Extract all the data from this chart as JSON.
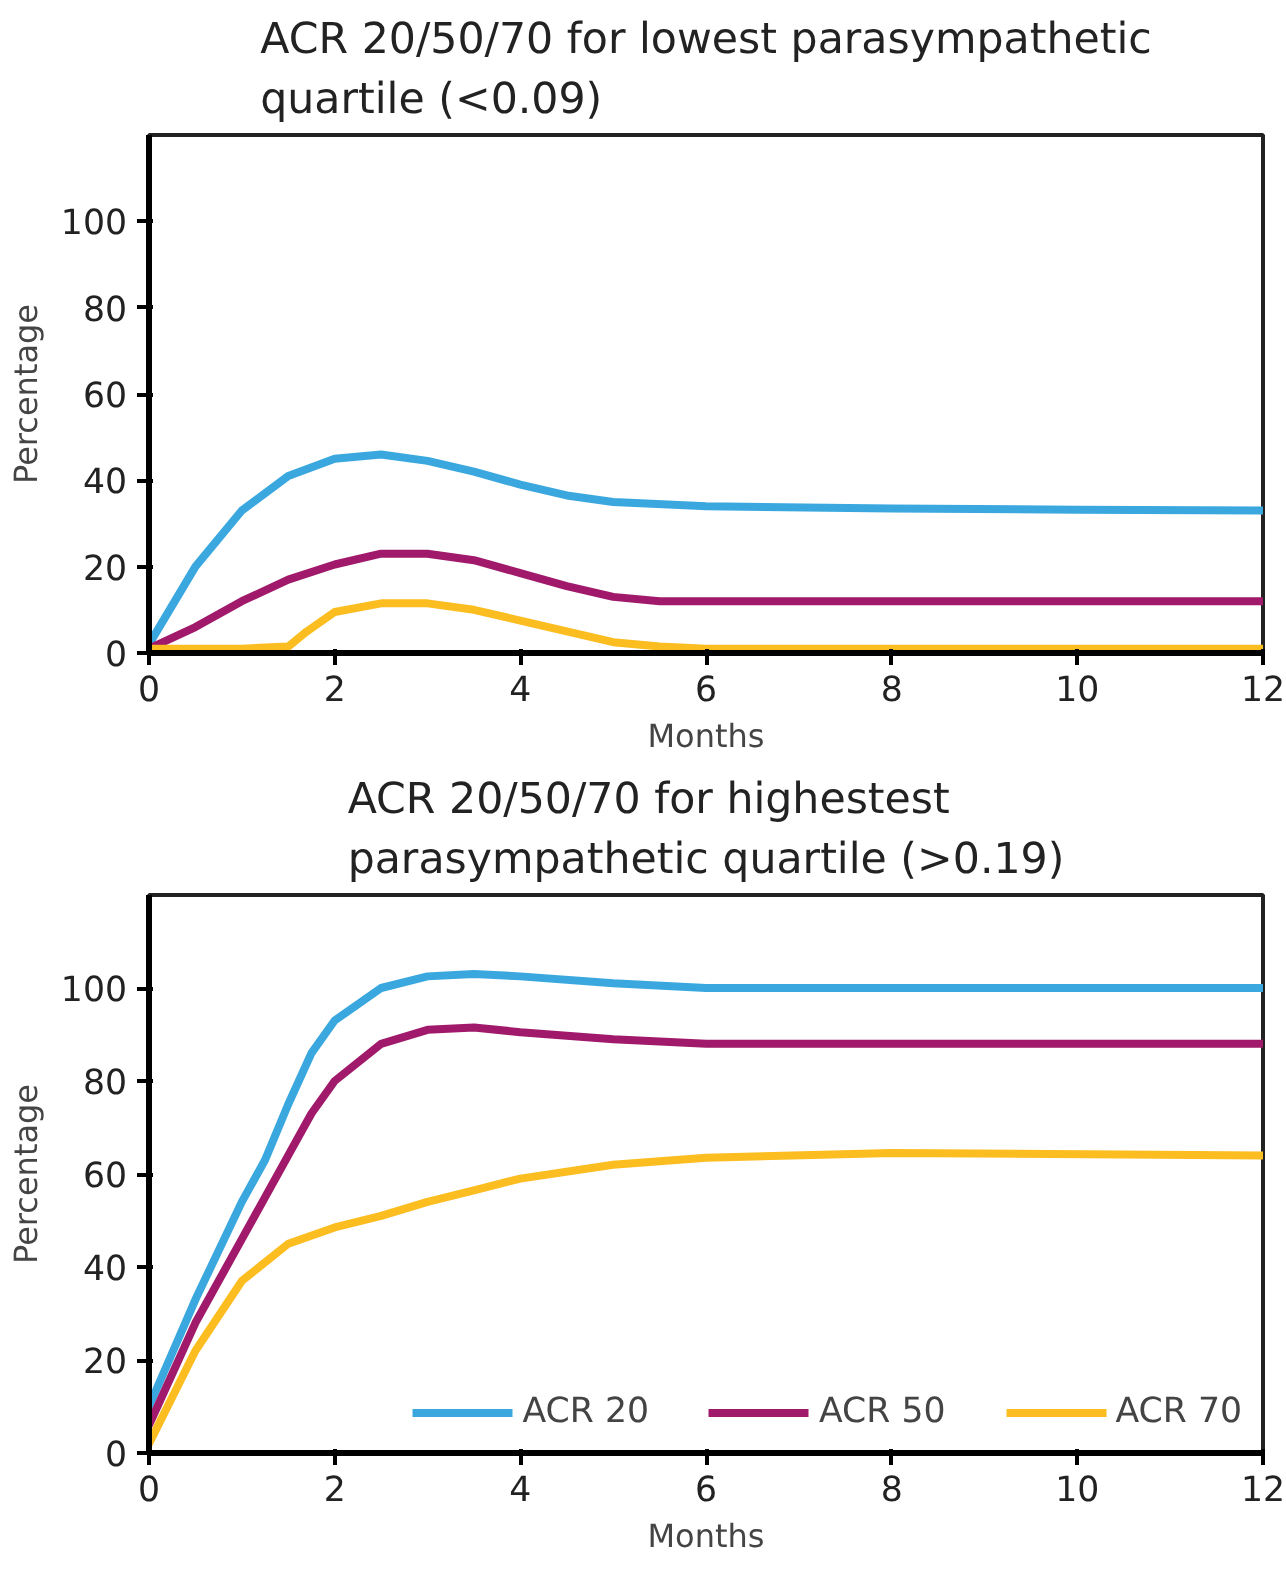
{
  "chart_data": [
    {
      "type": "line",
      "title": "ACR 20/50/70 for lowest parasympathetic quartile (<0.09)",
      "xlabel": "Months",
      "ylabel": "Percentage",
      "xlim": [
        0,
        12
      ],
      "ylim": [
        0,
        120
      ],
      "xticks": [
        0,
        2,
        4,
        6,
        8,
        10,
        12
      ],
      "yticks": [
        0,
        20,
        40,
        60,
        80,
        100
      ],
      "grid": false,
      "legend": false,
      "line_style": "solid",
      "marker": "none",
      "series": [
        {
          "color": "#3aa8df",
          "x": [
            0,
            0.5,
            1,
            1.5,
            2,
            2.5,
            3,
            3.5,
            4,
            4.5,
            5,
            6,
            8,
            10,
            12
          ],
          "values": [
            2,
            20,
            33,
            41,
            45,
            46,
            44.5,
            42,
            39,
            36.5,
            35,
            34,
            33.5,
            33.2,
            33
          ]
        },
        {
          "color": "#a0196a",
          "x": [
            0,
            0.5,
            1,
            1.5,
            2,
            2.5,
            3,
            3.5,
            4,
            4.5,
            5,
            5.5,
            6,
            12
          ],
          "values": [
            1,
            6,
            12,
            17,
            20.5,
            23,
            23,
            21.5,
            18.5,
            15.5,
            13,
            12,
            12,
            12
          ]
        },
        {
          "color": "#fbbd20",
          "x": [
            0,
            1,
            1.5,
            1.7,
            2,
            2.5,
            3,
            3.5,
            4,
            4.5,
            5,
            5.5,
            6,
            12
          ],
          "values": [
            1,
            1,
            1.5,
            5,
            9.5,
            11.5,
            11.5,
            10,
            7.5,
            5,
            2.5,
            1.5,
            1,
            1
          ]
        }
      ]
    },
    {
      "type": "line",
      "title": "ACR 20/50/70 for highestest parasympathetic quartile (>0.19)",
      "xlabel": "Months",
      "ylabel": "Percentage",
      "xlim": [
        0,
        12
      ],
      "ylim": [
        0,
        120
      ],
      "xticks": [
        0,
        2,
        4,
        6,
        8,
        10,
        12
      ],
      "yticks": [
        0,
        20,
        40,
        60,
        80,
        100
      ],
      "grid": false,
      "legend": "bottom",
      "line_style": "solid",
      "marker": "none",
      "series": [
        {
          "name": "ACR 20",
          "color": "#3aa8df",
          "x": [
            0,
            0.5,
            1,
            1.25,
            1.5,
            1.75,
            2,
            2.5,
            3,
            3.5,
            4,
            5,
            6,
            12
          ],
          "values": [
            10,
            33,
            54,
            63,
            75,
            86,
            93,
            100,
            102.5,
            103,
            102.5,
            101,
            100,
            100
          ]
        },
        {
          "name": "ACR 50",
          "color": "#a0196a",
          "x": [
            0,
            0.5,
            1,
            1.5,
            1.75,
            2,
            2.5,
            3,
            3.5,
            4,
            5,
            6,
            12
          ],
          "values": [
            6,
            28,
            46,
            64,
            73,
            80,
            88,
            91,
            91.5,
            90.5,
            89,
            88,
            88
          ]
        },
        {
          "name": "ACR 70",
          "color": "#fbbd20",
          "x": [
            0,
            0.5,
            1,
            1.5,
            2,
            2.5,
            3,
            3.5,
            4,
            5,
            6,
            8,
            12
          ],
          "values": [
            2,
            22,
            37,
            45,
            48.5,
            51,
            54,
            56.5,
            59,
            62,
            63.5,
            64.5,
            64
          ]
        }
      ]
    }
  ]
}
